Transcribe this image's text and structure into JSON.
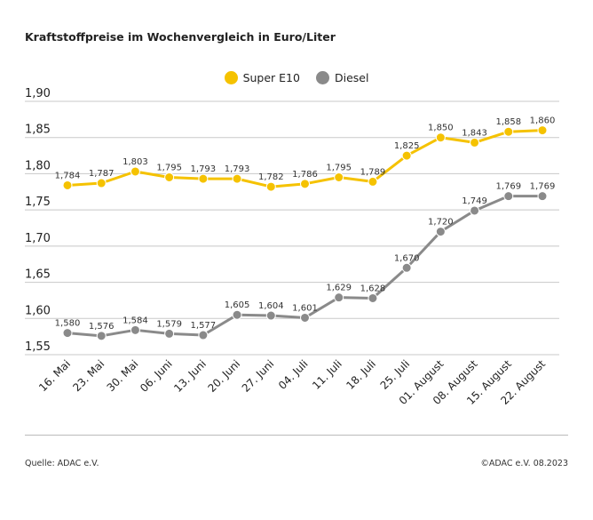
{
  "chart_data": {
    "type": "line",
    "title": "Kraftstoffpreise im Wochenvergleich in Euro/Liter",
    "categories": [
      "16. Mai",
      "23. Mai",
      "30. Mai",
      "06. Juni",
      "13. Juni",
      "20. Juni",
      "27. Juni",
      "04. Juli",
      "11. Juli",
      "18. Juli",
      "25. Juli",
      "01. August",
      "08. August",
      "15. August",
      "22. August"
    ],
    "series": [
      {
        "name": "Super E10",
        "color": "#f5c200",
        "values": [
          1.784,
          1.787,
          1.803,
          1.795,
          1.793,
          1.793,
          1.782,
          1.786,
          1.795,
          1.789,
          1.825,
          1.85,
          1.843,
          1.858,
          1.86
        ],
        "labels": [
          "1,784",
          "1,787",
          "1,803",
          "1,795",
          "1,793",
          "1,793",
          "1,782",
          "1,786",
          "1,795",
          "1,789",
          "1,825",
          "1,850",
          "1,843",
          "1,858",
          "1,860"
        ]
      },
      {
        "name": "Diesel",
        "color": "#8a8a8a",
        "values": [
          1.58,
          1.576,
          1.584,
          1.579,
          1.577,
          1.605,
          1.604,
          1.601,
          1.629,
          1.628,
          1.67,
          1.72,
          1.749,
          1.769,
          1.769
        ],
        "labels": [
          "1,580",
          "1,576",
          "1,584",
          "1,579",
          "1,577",
          "1,605",
          "1,604",
          "1,601",
          "1,629",
          "1,628",
          "1,670",
          "1,720",
          "1,749",
          "1,769",
          "1,769"
        ]
      }
    ],
    "ylim": [
      1.55,
      1.9
    ],
    "yticks": [
      "1,90",
      "1,85",
      "1,80",
      "1,75",
      "1,70",
      "1,65",
      "1,60",
      "1,55"
    ],
    "grid": true,
    "legend_position": "top-center"
  },
  "footer": {
    "source": "Quelle: ADAC e.V.",
    "copyright": "©ADAC e.V. 08.2023"
  }
}
